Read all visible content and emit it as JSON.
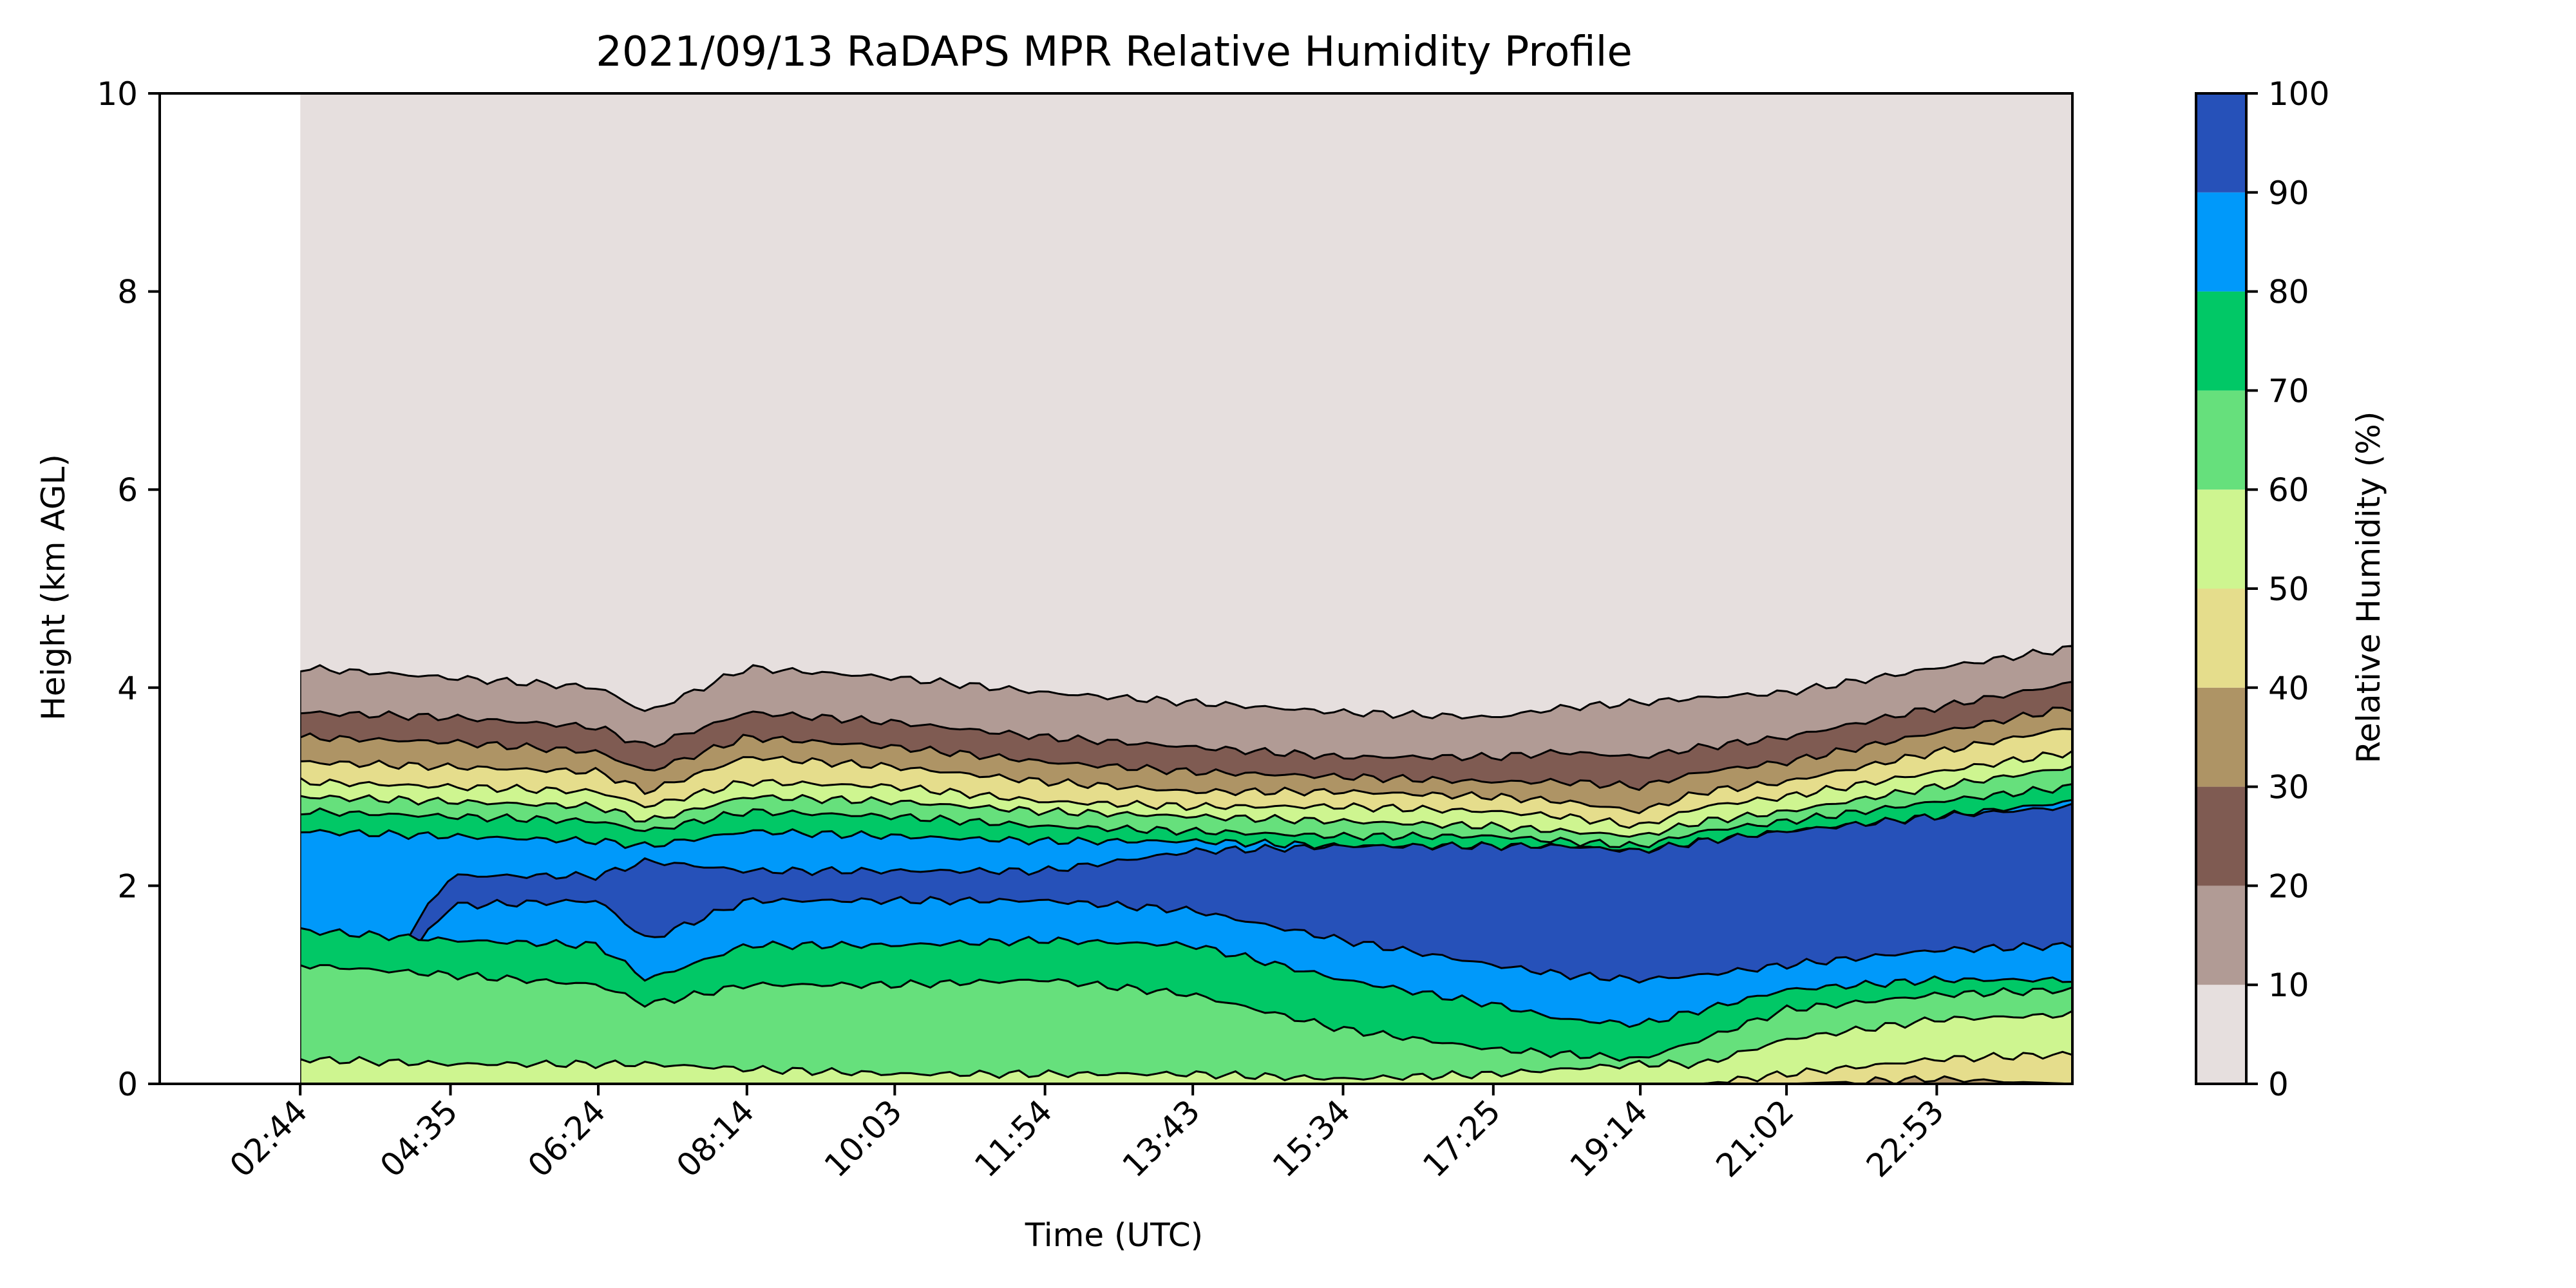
{
  "chart_data": {
    "type": "heatmap",
    "subtype": "filled-contour",
    "title": "2021/09/13 RaDAPS MPR Relative Humidity Profile",
    "xlabel": "Time (UTC)",
    "ylabel": "Height (km AGL)",
    "colorbar_label": "Relative Humidity (%)",
    "x_ticks": [
      "02:44",
      "04:35",
      "06:24",
      "08:14",
      "10:03",
      "11:54",
      "13:43",
      "15:34",
      "17:25",
      "19:14",
      "21:02",
      "22:53"
    ],
    "x_tick_hours": [
      2.73,
      4.58,
      6.4,
      8.23,
      10.05,
      11.9,
      13.72,
      15.57,
      17.42,
      19.23,
      21.03,
      22.88
    ],
    "xlim_hours": [
      1.0,
      24.55
    ],
    "data_start_hour": 2.73,
    "y_ticks": [
      0,
      2,
      4,
      6,
      8,
      10
    ],
    "ylim": [
      0,
      10
    ],
    "levels": [
      0,
      10,
      20,
      30,
      40,
      50,
      60,
      70,
      80,
      90,
      100
    ],
    "level_colors": [
      "#e6dfde",
      "#b19b95",
      "#7f5b52",
      "#ae9465",
      "#e5dd8c",
      "#cef590",
      "#66e07c",
      "#01c866",
      "#0099fa",
      "#2651b9"
    ],
    "grid": false,
    "colorbar_position": "right",
    "contour_boundaries": {
      "x_hours": [
        2.73,
        4.58,
        6.4,
        7.0,
        8.23,
        10.05,
        11.9,
        13.72,
        15.57,
        17.42,
        18.3,
        19.23,
        20.0,
        21.03,
        22.88,
        24.55
      ],
      "rh_10_top_km": [
        4.2,
        4.1,
        4.0,
        3.75,
        4.2,
        4.1,
        3.95,
        3.85,
        3.75,
        3.7,
        3.8,
        3.85,
        3.9,
        3.95,
        4.2,
        4.4
      ],
      "rh_20_top_km": [
        3.75,
        3.7,
        3.6,
        3.4,
        3.75,
        3.65,
        3.5,
        3.4,
        3.3,
        3.3,
        3.35,
        3.3,
        3.4,
        3.5,
        3.8,
        4.05
      ],
      "rh_30_top_km": [
        3.5,
        3.45,
        3.35,
        3.15,
        3.5,
        3.4,
        3.25,
        3.15,
        3.1,
        3.05,
        3.05,
        3.0,
        3.15,
        3.25,
        3.55,
        3.8
      ],
      "rh_40_top_km": [
        3.25,
        3.2,
        3.15,
        2.95,
        3.3,
        3.2,
        3.05,
        2.95,
        2.95,
        2.9,
        2.85,
        2.75,
        2.95,
        3.05,
        3.35,
        3.6
      ],
      "rh_50_top_km": [
        3.05,
        3.0,
        2.95,
        2.8,
        3.05,
        3.0,
        2.85,
        2.8,
        2.8,
        2.75,
        2.7,
        2.6,
        2.8,
        2.9,
        3.15,
        3.35
      ],
      "rh_60_top_km": [
        2.9,
        2.85,
        2.8,
        2.65,
        2.9,
        2.85,
        2.75,
        2.7,
        2.65,
        2.6,
        2.55,
        2.5,
        2.65,
        2.75,
        3.0,
        3.2
      ],
      "rh_70_top_km": [
        2.75,
        2.7,
        2.65,
        2.55,
        2.75,
        2.7,
        2.6,
        2.55,
        2.5,
        2.5,
        2.45,
        2.4,
        2.55,
        2.65,
        2.85,
        3.0
      ],
      "rh_80_top_km": [
        2.55,
        2.5,
        2.45,
        2.4,
        2.55,
        2.5,
        2.45,
        2.45,
        2.4,
        2.4,
        2.4,
        2.35,
        2.45,
        2.55,
        2.7,
        2.85
      ],
      "rh_90_top_km": [
        0,
        2.1,
        2.1,
        2.25,
        2.15,
        2.15,
        2.15,
        2.35,
        2.4,
        2.4,
        2.4,
        2.35,
        2.45,
        2.55,
        2.7,
        2.8
      ],
      "rh_90_bottom_km": [
        0,
        1.8,
        1.85,
        1.45,
        1.85,
        1.85,
        1.85,
        1.75,
        1.45,
        1.2,
        1.1,
        1.05,
        1.1,
        1.2,
        1.35,
        1.4
      ],
      "rh_80_bottom_km": [
        1.55,
        1.45,
        1.4,
        1.05,
        1.4,
        1.4,
        1.45,
        1.4,
        1.05,
        0.8,
        0.65,
        0.6,
        0.75,
        0.95,
        1.05,
        1.05
      ],
      "rh_70_bottom_km": [
        1.2,
        1.1,
        1.0,
        0.8,
        1.0,
        1.0,
        1.05,
        0.9,
        0.55,
        0.35,
        0.3,
        0.25,
        0.45,
        0.75,
        0.9,
        0.95
      ],
      "rh_60_bottom_km": [
        0.25,
        0.2,
        0.2,
        0.2,
        0.15,
        0.1,
        0.1,
        0.1,
        0.05,
        0.1,
        0.15,
        0.2,
        0.2,
        0.45,
        0.65,
        0.7
      ],
      "rh_50_bottom_km": [
        0,
        0,
        0,
        0,
        0,
        0,
        0,
        0,
        0,
        0,
        0,
        0,
        0,
        0.1,
        0.25,
        0.3
      ],
      "rh_40_bottom_km": [
        0,
        0,
        0,
        0,
        0,
        0,
        0,
        0,
        0,
        0,
        0,
        0,
        0,
        0,
        0.05,
        0.0
      ]
    }
  }
}
